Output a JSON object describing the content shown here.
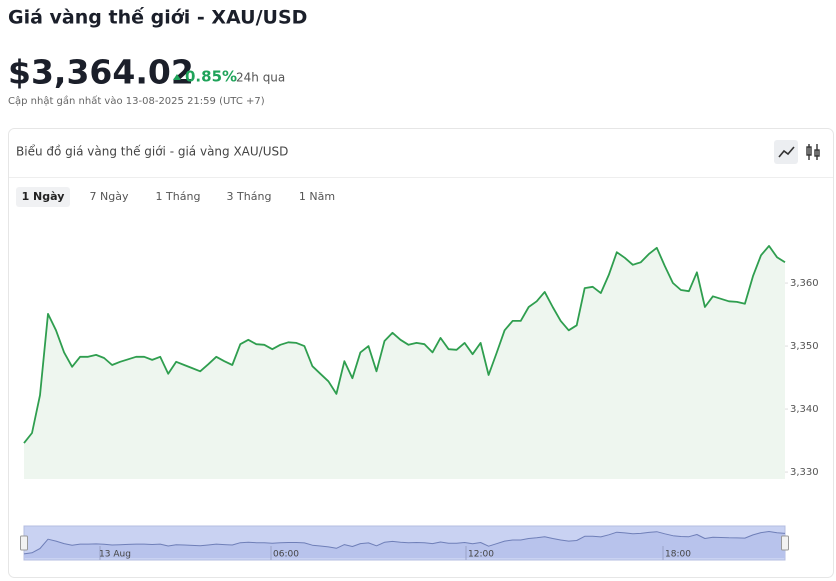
{
  "header": {
    "title": "Giá vàng thế giới - XAU/USD",
    "price": "$3,364.02",
    "change": "0.85%",
    "period": "24h qua",
    "updated": "Cập nhật gần nhất vào 13-08-2025 21:59 (UTC +7)"
  },
  "card": {
    "title": "Biểu đồ giá vàng thế giới - giá vàng XAU/USD"
  },
  "tabs": [
    "1 Ngày",
    "7 Ngày",
    "1 Tháng",
    "3 Tháng",
    "1 Năm"
  ],
  "selected_tab": 0,
  "navigator_labels": [
    "13 Aug",
    "06:00",
    "12:00",
    "18:00"
  ],
  "chart_data": {
    "type": "line",
    "color": "#2f9e4f",
    "values": [
      3334.6,
      3336.2,
      3342.2,
      3355.1,
      3352.5,
      3349.0,
      3346.7,
      3348.3,
      3348.3,
      3348.6,
      3348.1,
      3347.0,
      3347.5,
      3347.9,
      3348.3,
      3348.3,
      3347.8,
      3348.3,
      3345.6,
      3347.5,
      3347.0,
      3346.5,
      3346.0,
      3347.1,
      3348.3,
      3347.6,
      3347.0,
      3350.3,
      3351.0,
      3350.3,
      3350.2,
      3349.5,
      3350.2,
      3350.6,
      3350.5,
      3350.0,
      3346.8,
      3345.6,
      3344.4,
      3342.4,
      3347.6,
      3344.9,
      3349.0,
      3350.0,
      3346.0,
      3350.8,
      3352.1,
      3351.0,
      3350.2,
      3350.5,
      3350.3,
      3349.0,
      3351.3,
      3349.5,
      3349.4,
      3350.5,
      3348.7,
      3350.5,
      3345.4,
      3348.9,
      3352.5,
      3354.0,
      3354.0,
      3356.2,
      3357.1,
      3358.6,
      3356.2,
      3354.0,
      3352.5,
      3353.3,
      3359.2,
      3359.4,
      3358.4,
      3361.3,
      3364.9,
      3364.0,
      3362.9,
      3363.3,
      3364.6,
      3365.6,
      3362.7,
      3360.0,
      3358.9,
      3358.7,
      3361.7,
      3356.2,
      3357.9,
      3357.5,
      3357.1,
      3357.0,
      3356.7,
      3361.1,
      3364.4,
      3365.9,
      3364.1,
      3363.3
    ],
    "ylim": [
      3328.9,
      3370.8
    ],
    "yticks": [
      {
        "value": 3330,
        "label": "3,330"
      },
      {
        "value": 3340,
        "label": "3,340"
      },
      {
        "value": 3350,
        "label": "3,350"
      },
      {
        "value": 3360,
        "label": "3,360"
      }
    ]
  }
}
